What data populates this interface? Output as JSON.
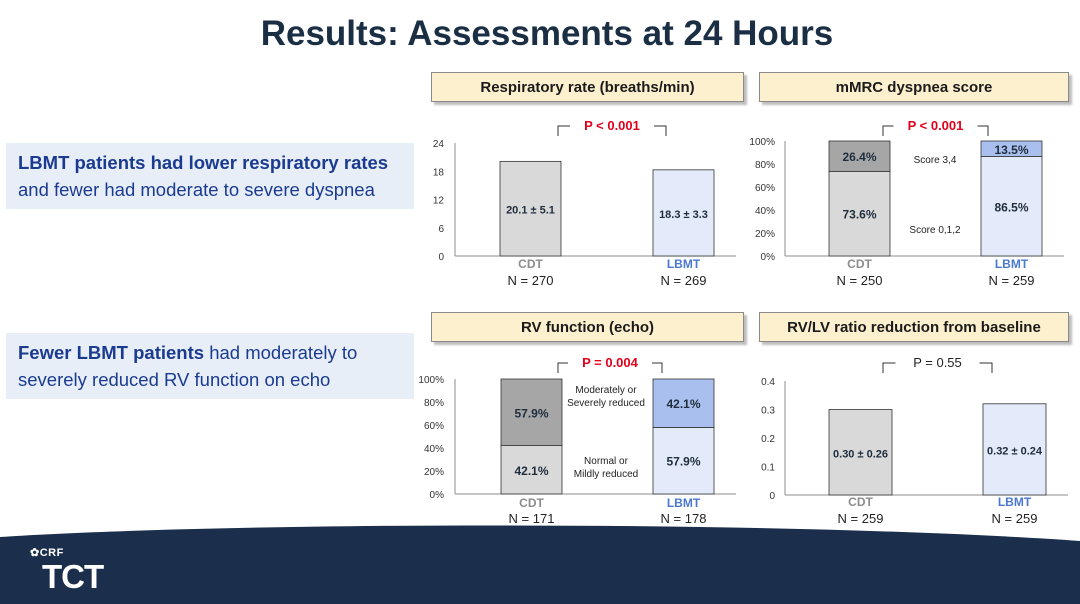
{
  "slide_title": "Results: Assessments at 24 Hours",
  "callouts": [
    {
      "bold": "LBMT patients had lower respiratory rates",
      "rest": "and fewer had moderate to severe dyspnea"
    },
    {
      "bold": "Fewer LBMT patients",
      "rest": " had moderately to severely reduced RV function on echo"
    }
  ],
  "colors": {
    "cdt_fill": "#d9d9d9",
    "lbmt_fill": "#e3ebfa",
    "cdt_dark": "#a6a6a6",
    "lbmt_dark": "#a9c0ee",
    "lbmt_label": "#4a78d0",
    "cdt_label": "#8c8c8c",
    "pvalue_red": "#e0001b",
    "footer_navy": "#1b2f4c"
  },
  "footer": {
    "brand_top": "CRF",
    "brand_main": "TCT"
  },
  "chart_data": [
    {
      "id": "resp",
      "type": "bar",
      "title": "Respiratory rate (breaths/min)",
      "categories": [
        "CDT",
        "LBMT"
      ],
      "n_labels": [
        "N = 270",
        "N = 269"
      ],
      "values": [
        20.1,
        18.3
      ],
      "value_labels": [
        "20.1 ± 5.1",
        "18.3 ± 3.3"
      ],
      "ylim": [
        0,
        24
      ],
      "yticks": [
        "0",
        "6",
        "12",
        "18",
        "24"
      ],
      "p_value": "P < 0.001"
    },
    {
      "id": "mmrc",
      "type": "bar",
      "title": "mMRC dyspnea score",
      "categories": [
        "CDT",
        "LBMT"
      ],
      "n_labels": [
        "N = 250",
        "N = 259"
      ],
      "series": [
        {
          "name": "Score 0,1,2",
          "values": [
            73.6,
            86.5
          ]
        },
        {
          "name": "Score 3,4",
          "values": [
            26.4,
            13.5
          ]
        }
      ],
      "value_labels": {
        "lower": [
          "73.6%",
          "86.5%"
        ],
        "upper": [
          "26.4%",
          "13.5%"
        ]
      },
      "ylim": [
        0,
        100
      ],
      "yticks": [
        "0%",
        "20%",
        "40%",
        "60%",
        "80%",
        "100%"
      ],
      "p_value": "P < 0.001"
    },
    {
      "id": "rv",
      "type": "bar",
      "title": "RV function (echo)",
      "categories": [
        "CDT",
        "LBMT"
      ],
      "n_labels": [
        "N = 171",
        "N = 178"
      ],
      "series": [
        {
          "name": "Normal or Mildly reduced",
          "values": [
            42.1,
            57.9
          ]
        },
        {
          "name": "Moderately or Severely reduced",
          "values": [
            57.9,
            42.1
          ]
        }
      ],
      "series_label_lines": {
        "lower": [
          "Normal or",
          "Mildly reduced"
        ],
        "upper": [
          "Moderately or",
          "Severely reduced"
        ]
      },
      "value_labels": {
        "lower": [
          "42.1%",
          "57.9%"
        ],
        "upper": [
          "57.9%",
          "42.1%"
        ]
      },
      "ylim": [
        0,
        100
      ],
      "yticks": [
        "0%",
        "20%",
        "40%",
        "60%",
        "80%",
        "100%"
      ],
      "p_value": "P = 0.004"
    },
    {
      "id": "rvlv",
      "type": "bar",
      "title": "RV/LV ratio reduction from baseline",
      "categories": [
        "CDT",
        "LBMT"
      ],
      "n_labels": [
        "N = 259",
        "N = 259"
      ],
      "values": [
        0.3,
        0.32
      ],
      "value_labels": [
        "0.30 ± 0.26",
        "0.32 ± 0.24"
      ],
      "ylim": [
        0,
        0.4
      ],
      "yticks": [
        "0",
        "0.1",
        "0.2",
        "0.3",
        "0.4"
      ],
      "p_value": "P = 0.55"
    }
  ]
}
